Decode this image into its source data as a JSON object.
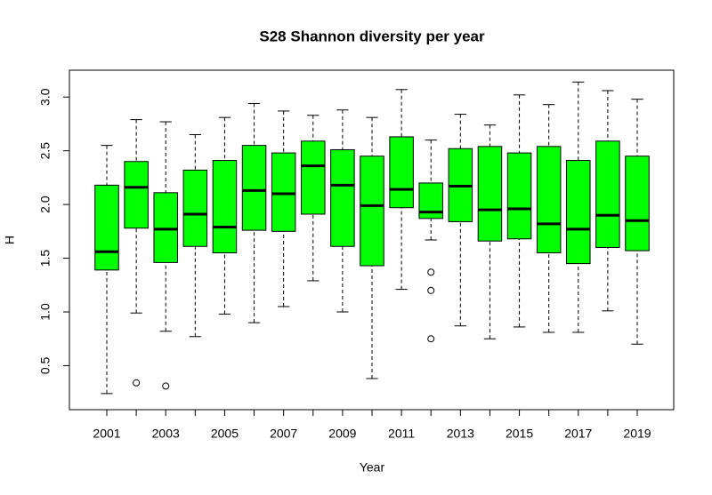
{
  "chart_data": {
    "type": "boxplot",
    "title": "S28 Shannon diversity per year",
    "x_label": "Year",
    "y_label": "H",
    "categories": [
      "2001",
      null,
      "2003",
      null,
      "2005",
      null,
      "2007",
      null,
      "2009",
      null,
      "2011",
      null,
      "2013",
      null,
      "2015",
      null,
      "2017",
      null,
      "2019"
    ],
    "color": "#00ff00",
    "whisker_low": [
      0.24,
      0.99,
      0.82,
      0.77,
      0.98,
      0.9,
      1.05,
      1.29,
      1.0,
      0.38,
      1.21,
      1.67,
      0.87,
      0.75,
      0.86,
      0.81,
      0.81,
      1.01,
      0.7
    ],
    "q1": [
      1.39,
      1.78,
      1.46,
      1.61,
      1.55,
      1.76,
      1.75,
      1.91,
      1.61,
      1.43,
      1.97,
      1.87,
      1.84,
      1.66,
      1.68,
      1.55,
      1.45,
      1.6,
      1.57
    ],
    "median": [
      1.56,
      2.16,
      1.77,
      1.91,
      1.79,
      2.13,
      2.1,
      2.36,
      2.18,
      1.99,
      2.14,
      1.93,
      2.17,
      1.95,
      1.96,
      1.82,
      1.77,
      1.9,
      1.85
    ],
    "q3": [
      2.18,
      2.4,
      2.11,
      2.32,
      2.41,
      2.55,
      2.48,
      2.59,
      2.51,
      2.45,
      2.63,
      2.2,
      2.52,
      2.54,
      2.48,
      2.54,
      2.41,
      2.59,
      2.45
    ],
    "whisker_high": [
      2.55,
      2.79,
      2.77,
      2.65,
      2.81,
      2.94,
      2.87,
      2.83,
      2.88,
      2.81,
      3.07,
      2.6,
      2.84,
      2.74,
      3.02,
      2.93,
      3.14,
      3.06,
      2.98
    ],
    "outliers": [
      [],
      [
        0.34
      ],
      [
        0.31
      ],
      [],
      [],
      [],
      [],
      [],
      [],
      [],
      [],
      [
        1.37,
        1.2,
        0.75
      ],
      [],
      [],
      [],
      [],
      [],
      [],
      []
    ],
    "ylim": [
      0.09,
      3.25
    ],
    "yticks": [
      0.5,
      {
        "value": 1.0,
        "label": "1.0"
      },
      1.5,
      {
        "value": 2.0,
        "label": "2.0"
      },
      2.5,
      {
        "value": 3.0,
        "label": "3.0"
      }
    ]
  }
}
